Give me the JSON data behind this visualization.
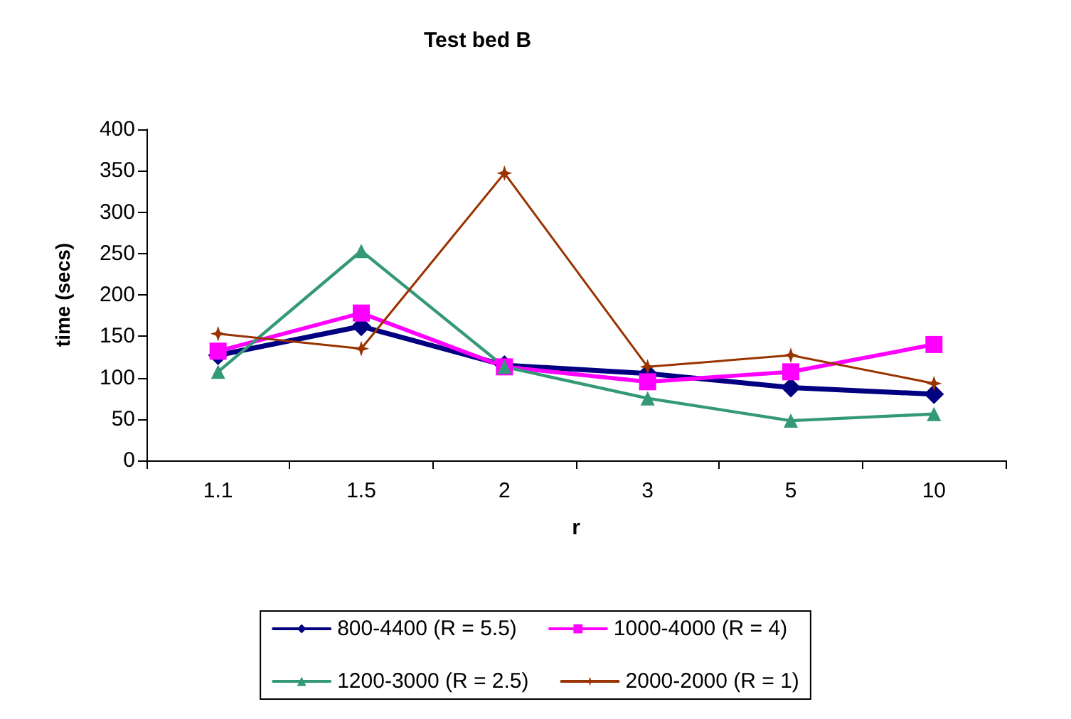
{
  "chart_data": {
    "type": "line",
    "title": "Test bed B",
    "xlabel": "r",
    "ylabel": "time (secs)",
    "categories": [
      "1.1",
      "1.5",
      "2",
      "3",
      "5",
      "10"
    ],
    "ylim": [
      0,
      400
    ],
    "yticks": [
      0,
      50,
      100,
      150,
      200,
      250,
      300,
      350,
      400
    ],
    "grid": false,
    "legend": "bottom",
    "line_style": "solid",
    "series": [
      {
        "name": "800-4400 (R = 5.5)",
        "color": "#000080",
        "marker": "diamond",
        "values": [
          127,
          162,
          115,
          105,
          88,
          80
        ]
      },
      {
        "name": "1000-4000 (R = 4)",
        "color": "#ff00ff",
        "marker": "square",
        "values": [
          132,
          178,
          113,
          95,
          107,
          140
        ]
      },
      {
        "name": "1200-3000 (R = 2.5)",
        "color": "#339977",
        "marker": "triangle",
        "values": [
          107,
          253,
          113,
          75,
          48,
          56
        ]
      },
      {
        "name": "2000-2000 (R = 1)",
        "color": "#993300",
        "marker": "star",
        "values": [
          153,
          135,
          347,
          113,
          127,
          93
        ]
      }
    ]
  }
}
